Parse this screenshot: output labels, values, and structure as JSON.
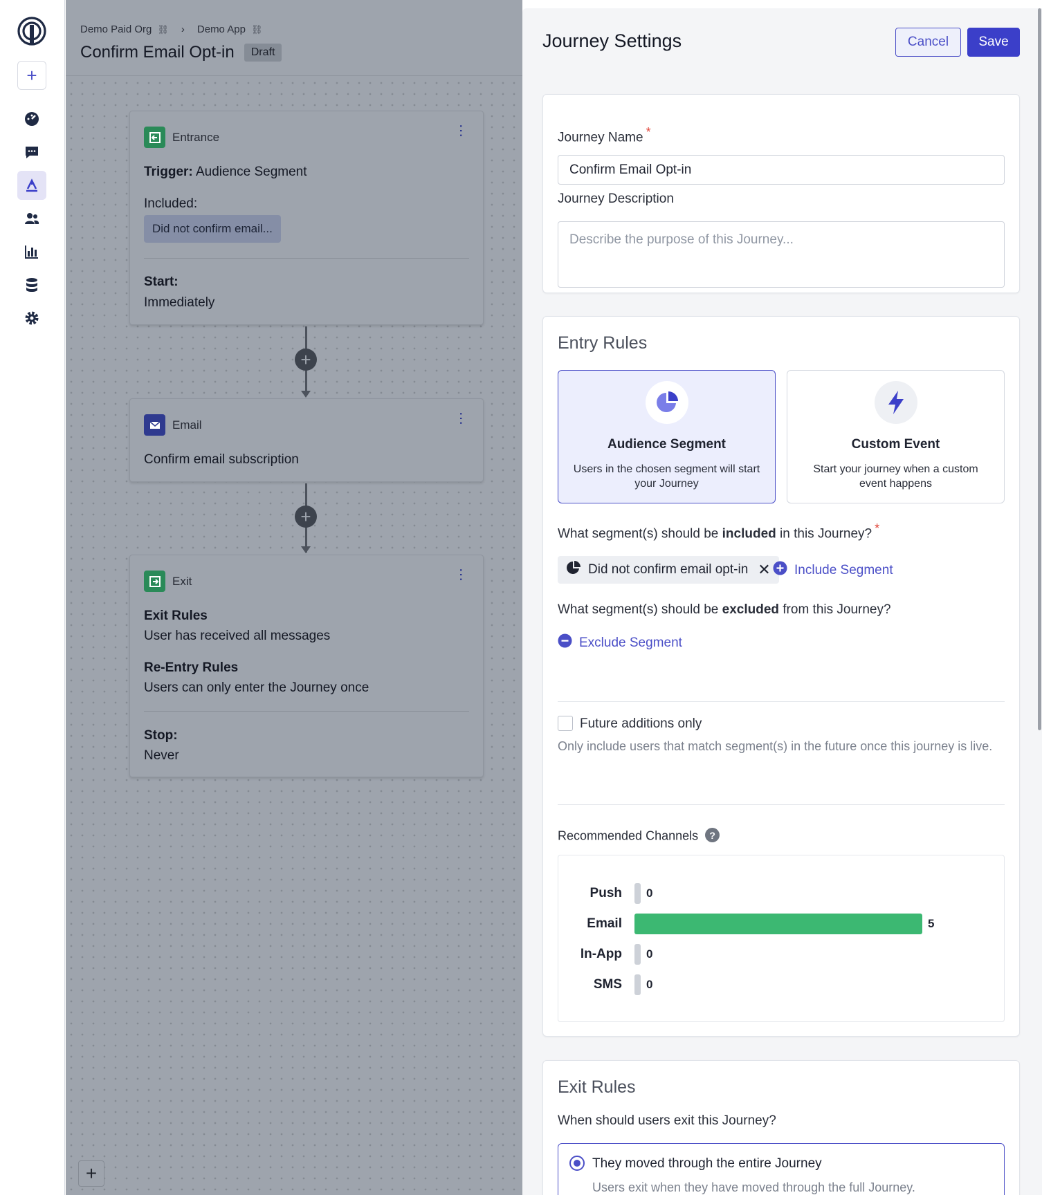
{
  "breadcrumbs": {
    "org": "Demo Paid Org",
    "app": "Demo App"
  },
  "page": {
    "title": "Confirm Email Opt-in",
    "status": "Draft"
  },
  "canvas": {
    "entrance": {
      "type": "Entrance",
      "trigger_label": "Trigger:",
      "trigger_value": "Audience Segment",
      "included_label": "Included:",
      "included_chip": "Did not confirm email...",
      "start_label": "Start:",
      "start_value": "Immediately"
    },
    "email": {
      "type": "Email",
      "title": "Confirm email subscription"
    },
    "exit": {
      "type": "Exit",
      "exit_rules_label": "Exit Rules",
      "exit_rules_value": "User has received all messages",
      "reentry_label": "Re-Entry Rules",
      "reentry_value": "Users can only enter the Journey once",
      "stop_label": "Stop:",
      "stop_value": "Never"
    }
  },
  "panel": {
    "title": "Journey Settings",
    "cancel": "Cancel",
    "save": "Save",
    "name_label": "Journey Name",
    "name_value": "Confirm Email Opt-in",
    "desc_label": "Journey Description",
    "desc_placeholder": "Describe the purpose of this Journey...",
    "entry_title": "Entry Rules",
    "options": [
      {
        "name": "Audience Segment",
        "desc": "Users in the chosen segment will start your Journey",
        "icon": "pie-chart-icon",
        "selected": true
      },
      {
        "name": "Custom Event",
        "desc": "Start your journey when a custom event happens",
        "icon": "lightning-icon",
        "selected": false
      }
    ],
    "include_q_pre": "What segment(s) should be ",
    "include_q_bold": "included",
    "include_q_post": " in this Journey?",
    "included_segment": "Did not confirm email opt-in",
    "include_link": "Include Segment",
    "exclude_q_pre": "What segment(s) should be ",
    "exclude_q_bold": "excluded",
    "exclude_q_post": " from this Journey?",
    "exclude_link": "Exclude Segment",
    "future_label": "Future additions only",
    "future_help": "Only include users that match segment(s) in the future once this journey is live.",
    "channels_label": "Recommended Channels",
    "channels": [
      {
        "name": "Push",
        "value": 0
      },
      {
        "name": "Email",
        "value": 5
      },
      {
        "name": "In-App",
        "value": 0
      },
      {
        "name": "SMS",
        "value": 0
      }
    ],
    "channels_max": 5,
    "exit_title": "Exit Rules",
    "exit_q": "When should users exit this Journey?",
    "exit_option_title": "They moved through the entire Journey",
    "exit_option_desc": "Users exit when they have moved through the full Journey."
  },
  "colors": {
    "accent": "#4b4fc7",
    "bar_green": "#3cb872",
    "bar_empty": "#cdd1d8"
  }
}
